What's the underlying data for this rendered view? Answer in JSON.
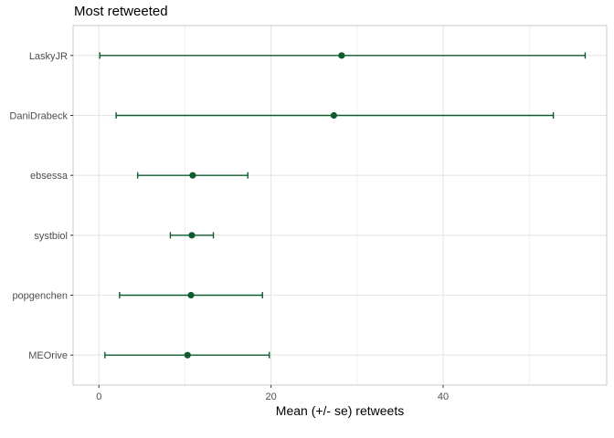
{
  "chart_data": {
    "type": "errorbar-dot",
    "title": "Most retweeted",
    "xlabel": "Mean (+/- se) retweets",
    "ylabel": "",
    "xlim": [
      -3,
      59
    ],
    "x_ticks": [
      0,
      20,
      40
    ],
    "categories": [
      "LaskyJR",
      "DaniDrabeck",
      "ebsessa",
      "systbiol",
      "popgenchen",
      "MEOrive"
    ],
    "series": [
      {
        "mean": [
          28.2,
          27.3,
          10.9,
          10.8,
          10.7,
          10.3
        ],
        "lower": [
          0.1,
          2.0,
          4.5,
          8.3,
          2.4,
          0.7
        ],
        "upper": [
          56.5,
          52.8,
          17.3,
          13.3,
          19.0,
          19.8
        ]
      }
    ],
    "grid": true,
    "legend": "none",
    "colors": {
      "series": "#0d5c2e",
      "grid": "#e5e5e5",
      "panel_border": "#bfbfbf"
    }
  }
}
